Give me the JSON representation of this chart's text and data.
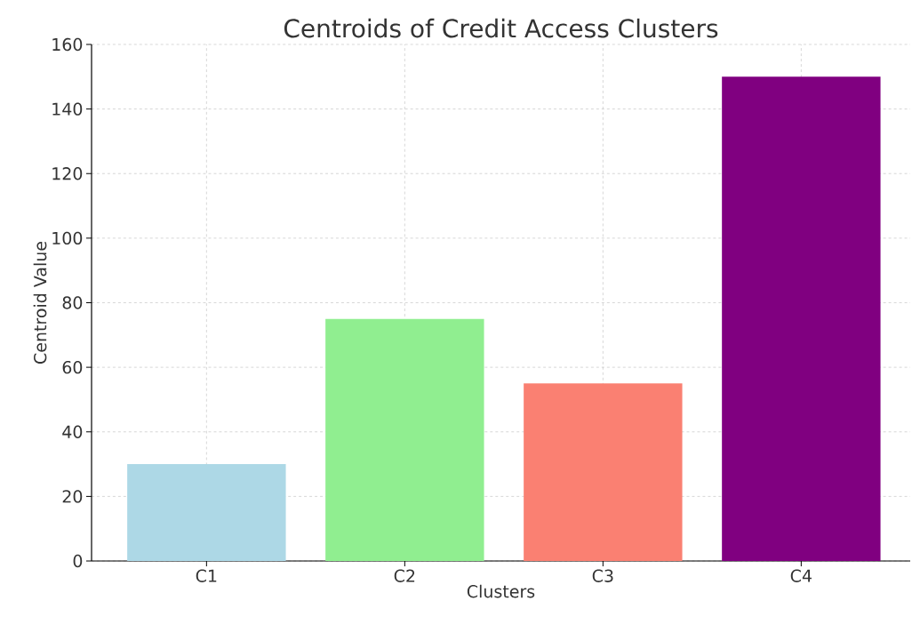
{
  "chart_data": {
    "type": "bar",
    "title": "Centroids of Credit Access Clusters",
    "xlabel": "Clusters",
    "ylabel": "Centroid Value",
    "categories": [
      "C1",
      "C2",
      "C3",
      "C4"
    ],
    "values": [
      30,
      75,
      55,
      150
    ],
    "colors": [
      "#add8e6",
      "#90ee90",
      "#fa8072",
      "#800080"
    ],
    "ylim": [
      0,
      160
    ],
    "yticks": [
      0,
      20,
      40,
      60,
      80,
      100,
      120,
      140,
      160
    ],
    "grid": true,
    "line_style": "dashed"
  }
}
